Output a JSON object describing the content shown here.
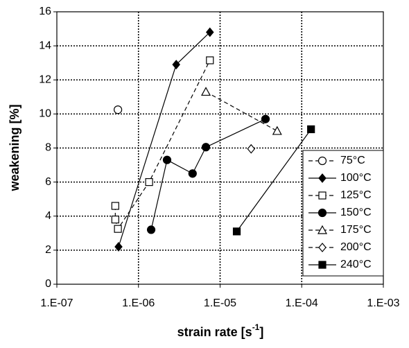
{
  "chart_data": {
    "type": "scatter",
    "ylabel": "weakening [%]",
    "xlabel": [
      "strain rate [s",
      "-1",
      "]"
    ],
    "xscale": "log",
    "xlim": [
      1e-07,
      0.001
    ],
    "xticks": [
      {
        "value": 1e-07,
        "label": "1.E-07"
      },
      {
        "value": 1e-06,
        "label": "1.E-06"
      },
      {
        "value": 1e-05,
        "label": "1.E-05"
      },
      {
        "value": 0.0001,
        "label": "1.E-04"
      },
      {
        "value": 0.001,
        "label": "1.E-03"
      }
    ],
    "ylim": [
      0,
      16
    ],
    "yticks": [
      0,
      2,
      4,
      6,
      8,
      10,
      12,
      14,
      16
    ],
    "grid": true,
    "legend": "lower right",
    "series": [
      {
        "name": "75°C",
        "color": "#000000",
        "marker": "circle",
        "filled": false,
        "dash": true,
        "x": [
          5.6e-07
        ],
        "values": [
          10.25
        ]
      },
      {
        "name": "100°C",
        "color": "#000000",
        "marker": "diamond",
        "filled": true,
        "dash": false,
        "x": [
          5.7e-07,
          2.9e-06,
          7.5e-06
        ],
        "values": [
          2.2,
          12.9,
          14.8
        ]
      },
      {
        "name": "125°C",
        "color": "#000000",
        "marker": "square",
        "filled": false,
        "dash": true,
        "x": [
          5.2e-07,
          5.2e-07,
          5.6e-07,
          1.35e-06,
          7.5e-06
        ],
        "values": [
          4.6,
          3.8,
          3.25,
          6.0,
          13.15
        ]
      },
      {
        "name": "150°C",
        "color": "#000000",
        "marker": "circle",
        "filled": true,
        "dash": false,
        "x": [
          1.43e-06,
          2.24e-06,
          4.6e-06,
          6.7e-06,
          3.6e-05
        ],
        "values": [
          3.2,
          7.3,
          6.5,
          8.05,
          9.7
        ]
      },
      {
        "name": "175°C",
        "color": "#000000",
        "marker": "triangle",
        "filled": false,
        "dash": true,
        "x": [
          6.7e-06,
          5e-05
        ],
        "values": [
          11.3,
          9.0
        ]
      },
      {
        "name": "200°C",
        "color": "#000000",
        "marker": "diamond",
        "filled": false,
        "dash": true,
        "x": [
          2.4e-05
        ],
        "values": [
          7.95
        ]
      },
      {
        "name": "240°C",
        "color": "#000000",
        "marker": "square",
        "filled": true,
        "dash": false,
        "x": [
          1.6e-05,
          0.00013
        ],
        "values": [
          3.1,
          9.1
        ]
      }
    ]
  }
}
